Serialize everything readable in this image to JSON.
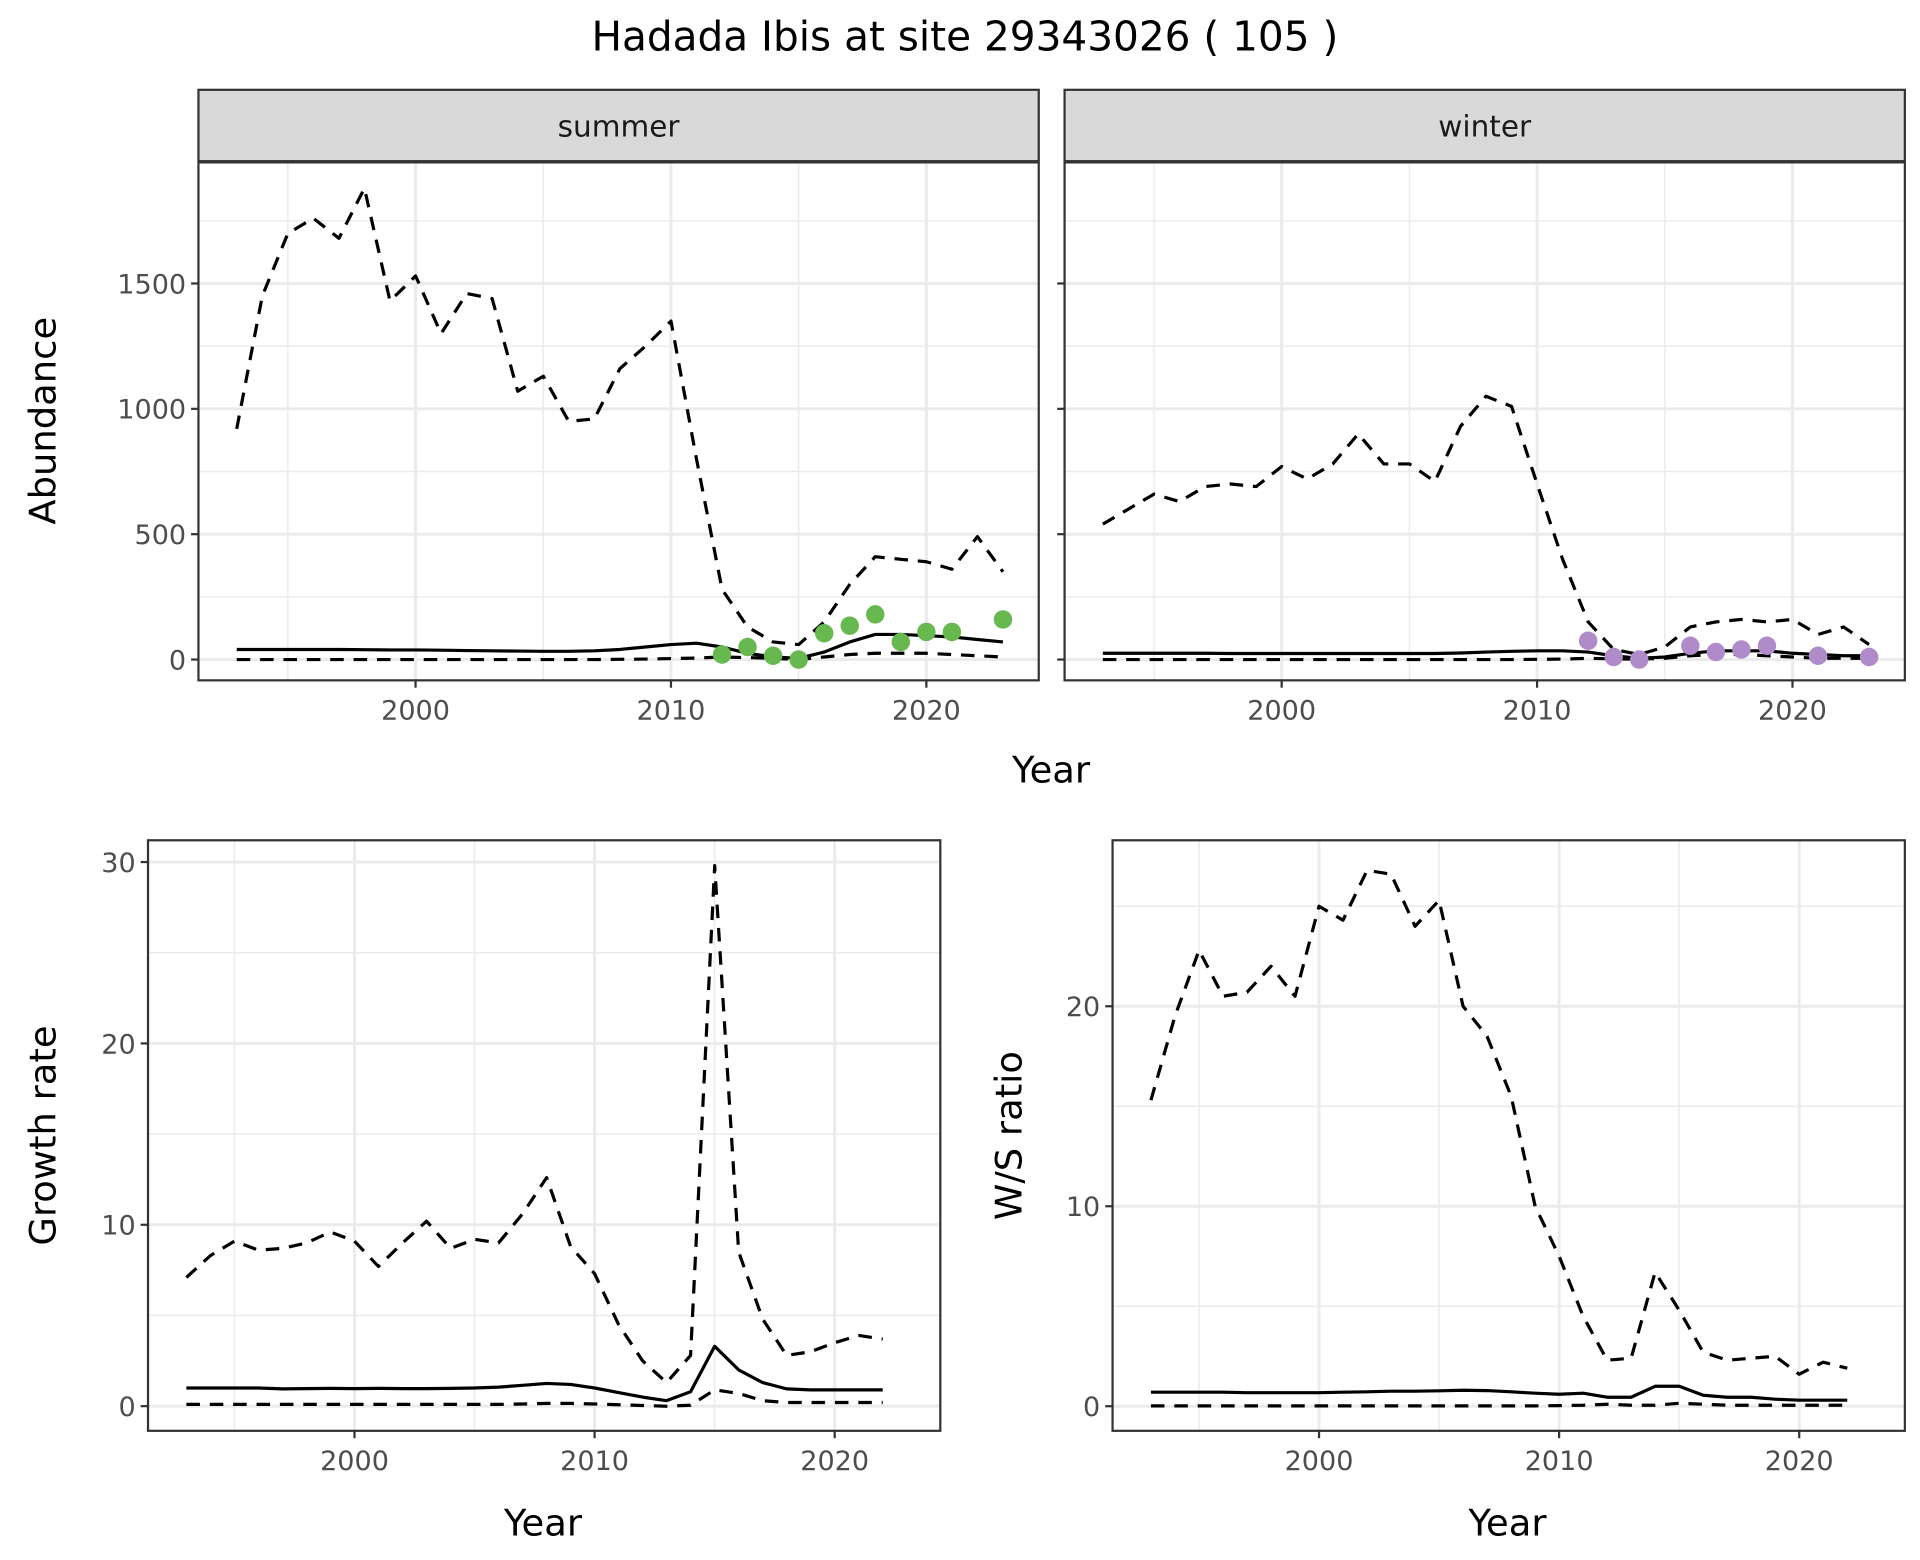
{
  "title": "Hadada Ibis at site 29343026 ( 105 )",
  "colors": {
    "summer_points": "#66B84F",
    "winter_points": "#B08BC9",
    "line": "#000000",
    "strip_bg": "#D9D9D9",
    "grid": "#EBEBEB"
  },
  "chart_data": [
    {
      "id": "summer",
      "type": "line",
      "strip": "summer",
      "xlabel": "Year",
      "ylabel": "Abundance",
      "xlim": [
        1991.5,
        2024.4
      ],
      "ylim": [
        -83,
        1983
      ],
      "xticks": [
        2000,
        2010,
        2020
      ],
      "xtick_labels": [
        "2000",
        "2010",
        "2020"
      ],
      "yticks": [
        0,
        500,
        1000,
        1500
      ],
      "ytick_labels": [
        "0",
        "500",
        "1000",
        "1500"
      ],
      "show_yticks": true,
      "x": [
        1993,
        1994,
        1995,
        1996,
        1997,
        1998,
        1999,
        2000,
        2001,
        2002,
        2003,
        2004,
        2005,
        2006,
        2007,
        2008,
        2009,
        2010,
        2011,
        2012,
        2013,
        2014,
        2015,
        2016,
        2017,
        2018,
        2019,
        2020,
        2021,
        2022,
        2023
      ],
      "series": [
        {
          "name": "upper",
          "style": "dashed",
          "values": [
            920,
            1450,
            1700,
            1760,
            1680,
            1880,
            1430,
            1530,
            1300,
            1460,
            1440,
            1070,
            1130,
            950,
            960,
            1160,
            1250,
            1350,
            800,
            280,
            130,
            70,
            60,
            150,
            300,
            410,
            400,
            390,
            360,
            490,
            350
          ]
        },
        {
          "name": "mean",
          "style": "solid",
          "values": [
            40,
            40,
            40,
            40,
            40,
            39,
            38,
            38,
            37,
            36,
            35,
            34,
            33,
            33,
            35,
            40,
            50,
            60,
            65,
            50,
            25,
            10,
            5,
            30,
            70,
            100,
            100,
            95,
            90,
            80,
            70
          ]
        },
        {
          "name": "lower",
          "style": "dashed",
          "values": [
            0,
            0,
            0,
            0,
            0,
            0,
            0,
            0,
            0,
            0,
            0,
            0,
            0,
            0,
            0,
            1,
            2,
            4,
            6,
            10,
            8,
            5,
            0,
            10,
            20,
            25,
            25,
            25,
            20,
            15,
            10
          ]
        }
      ],
      "points": {
        "x": [
          2012,
          2013,
          2014,
          2015,
          2016,
          2017,
          2018,
          2019,
          2020,
          2021,
          2023
        ],
        "y": [
          20,
          50,
          15,
          0,
          105,
          135,
          180,
          70,
          110,
          110,
          160
        ]
      }
    },
    {
      "id": "winter",
      "type": "line",
      "strip": "winter",
      "xlabel": "",
      "ylabel": "",
      "xlim": [
        1991.5,
        2024.4
      ],
      "ylim": [
        -83,
        1983
      ],
      "xticks": [
        2000,
        2010,
        2020
      ],
      "xtick_labels": [
        "2000",
        "2010",
        "2020"
      ],
      "yticks": [
        0,
        500,
        1000,
        1500
      ],
      "ytick_labels": [],
      "show_yticks": false,
      "x": [
        1993,
        1994,
        1995,
        1996,
        1997,
        1998,
        1999,
        2000,
        2001,
        2002,
        2003,
        2004,
        2005,
        2006,
        2007,
        2008,
        2009,
        2010,
        2011,
        2012,
        2013,
        2014,
        2015,
        2016,
        2017,
        2018,
        2019,
        2020,
        2021,
        2022,
        2023
      ],
      "series": [
        {
          "name": "upper",
          "style": "dashed",
          "values": [
            540,
            600,
            660,
            630,
            690,
            700,
            690,
            770,
            720,
            780,
            900,
            780,
            780,
            710,
            930,
            1050,
            1010,
            700,
            400,
            150,
            40,
            20,
            50,
            130,
            150,
            160,
            150,
            160,
            100,
            130,
            60
          ]
        },
        {
          "name": "mean",
          "style": "solid",
          "values": [
            25,
            25,
            25,
            25,
            25,
            24,
            24,
            24,
            24,
            24,
            24,
            24,
            24,
            24,
            26,
            30,
            33,
            35,
            35,
            30,
            15,
            5,
            10,
            25,
            35,
            35,
            35,
            25,
            20,
            15,
            15
          ]
        },
        {
          "name": "lower",
          "style": "dashed",
          "values": [
            0,
            0,
            0,
            0,
            0,
            0,
            0,
            0,
            0,
            0,
            0,
            0,
            0,
            0,
            0,
            0,
            0,
            1,
            2,
            5,
            3,
            2,
            5,
            15,
            20,
            20,
            15,
            10,
            5,
            5,
            5
          ]
        }
      ],
      "points": {
        "x": [
          2012,
          2013,
          2014,
          2016,
          2017,
          2018,
          2019,
          2021,
          2023
        ],
        "y": [
          75,
          10,
          0,
          55,
          30,
          40,
          55,
          15,
          10
        ]
      }
    },
    {
      "id": "growth",
      "type": "line",
      "strip": "",
      "xlabel": "Year",
      "ylabel": "Growth rate",
      "xlim": [
        1991.4,
        2024.4
      ],
      "ylim": [
        -1.36,
        31.2
      ],
      "xticks": [
        2000,
        2010,
        2020
      ],
      "xtick_labels": [
        "2000",
        "2010",
        "2020"
      ],
      "yticks": [
        0,
        10,
        20,
        30
      ],
      "ytick_labels": [
        "0",
        "10",
        "20",
        "30"
      ],
      "show_yticks": true,
      "x": [
        1993,
        1994,
        1995,
        1996,
        1997,
        1998,
        1999,
        2000,
        2001,
        2002,
        2003,
        2004,
        2005,
        2006,
        2007,
        2008,
        2009,
        2010,
        2011,
        2012,
        2013,
        2014,
        2015,
        2016,
        2017,
        2018,
        2019,
        2020,
        2021,
        2022
      ],
      "series": [
        {
          "name": "upper",
          "style": "dashed",
          "values": [
            7.1,
            8.3,
            9.1,
            8.6,
            8.7,
            9.0,
            9.6,
            9.1,
            7.7,
            9.0,
            10.2,
            8.7,
            9.2,
            9.0,
            10.6,
            12.6,
            8.8,
            7.3,
            4.5,
            2.5,
            1.3,
            2.8,
            29.8,
            8.5,
            4.8,
            2.8,
            3.0,
            3.5,
            3.9,
            3.7
          ]
        },
        {
          "name": "mean",
          "style": "solid",
          "values": [
            1.0,
            1.0,
            1.0,
            1.0,
            0.95,
            0.97,
            0.98,
            0.97,
            0.98,
            0.97,
            0.97,
            0.98,
            1.0,
            1.05,
            1.15,
            1.25,
            1.2,
            1.0,
            0.75,
            0.5,
            0.3,
            0.8,
            3.3,
            2.0,
            1.3,
            0.95,
            0.9,
            0.9,
            0.9,
            0.9
          ]
        },
        {
          "name": "lower",
          "style": "dashed",
          "values": [
            0.1,
            0.1,
            0.1,
            0.1,
            0.1,
            0.1,
            0.1,
            0.1,
            0.1,
            0.1,
            0.1,
            0.1,
            0.1,
            0.1,
            0.12,
            0.15,
            0.15,
            0.12,
            0.08,
            0.04,
            0.0,
            0.05,
            0.9,
            0.7,
            0.3,
            0.2,
            0.2,
            0.2,
            0.2,
            0.2
          ]
        }
      ]
    },
    {
      "id": "ratio",
      "type": "line",
      "strip": "",
      "xlabel": "Year",
      "ylabel": "W/S ratio",
      "xlim": [
        1991.4,
        2024.4
      ],
      "ylim": [
        -1.23,
        28.3
      ],
      "xticks": [
        2000,
        2010,
        2020
      ],
      "xtick_labels": [
        "2000",
        "2010",
        "2020"
      ],
      "yticks": [
        0,
        10,
        20
      ],
      "ytick_labels": [
        "0",
        "10",
        "20"
      ],
      "show_yticks": true,
      "x": [
        1993,
        1994,
        1995,
        1996,
        1997,
        1998,
        1999,
        2000,
        2001,
        2002,
        2003,
        2004,
        2005,
        2006,
        2007,
        2008,
        2009,
        2010,
        2011,
        2012,
        2013,
        2014,
        2015,
        2016,
        2017,
        2018,
        2019,
        2020,
        2021,
        2022
      ],
      "series": [
        {
          "name": "upper",
          "style": "dashed",
          "values": [
            15.3,
            19.5,
            22.8,
            20.5,
            20.7,
            22.0,
            20.5,
            25.0,
            24.3,
            26.8,
            26.6,
            24.0,
            25.3,
            20.0,
            18.5,
            15.5,
            10.0,
            7.5,
            4.5,
            2.3,
            2.4,
            6.7,
            4.8,
            2.7,
            2.3,
            2.4,
            2.5,
            1.6,
            2.2,
            1.9
          ]
        },
        {
          "name": "mean",
          "style": "solid",
          "values": [
            0.7,
            0.7,
            0.7,
            0.7,
            0.68,
            0.68,
            0.68,
            0.68,
            0.7,
            0.72,
            0.75,
            0.75,
            0.77,
            0.8,
            0.78,
            0.72,
            0.65,
            0.6,
            0.65,
            0.45,
            0.45,
            1.0,
            1.0,
            0.55,
            0.45,
            0.45,
            0.35,
            0.3,
            0.3,
            0.3
          ]
        },
        {
          "name": "lower",
          "style": "dashed",
          "values": [
            0.02,
            0.02,
            0.02,
            0.02,
            0.02,
            0.02,
            0.02,
            0.02,
            0.02,
            0.02,
            0.02,
            0.02,
            0.02,
            0.02,
            0.02,
            0.02,
            0.02,
            0.03,
            0.05,
            0.1,
            0.05,
            0.05,
            0.15,
            0.1,
            0.05,
            0.05,
            0.05,
            0.05,
            0.05,
            0.05
          ]
        }
      ]
    }
  ]
}
